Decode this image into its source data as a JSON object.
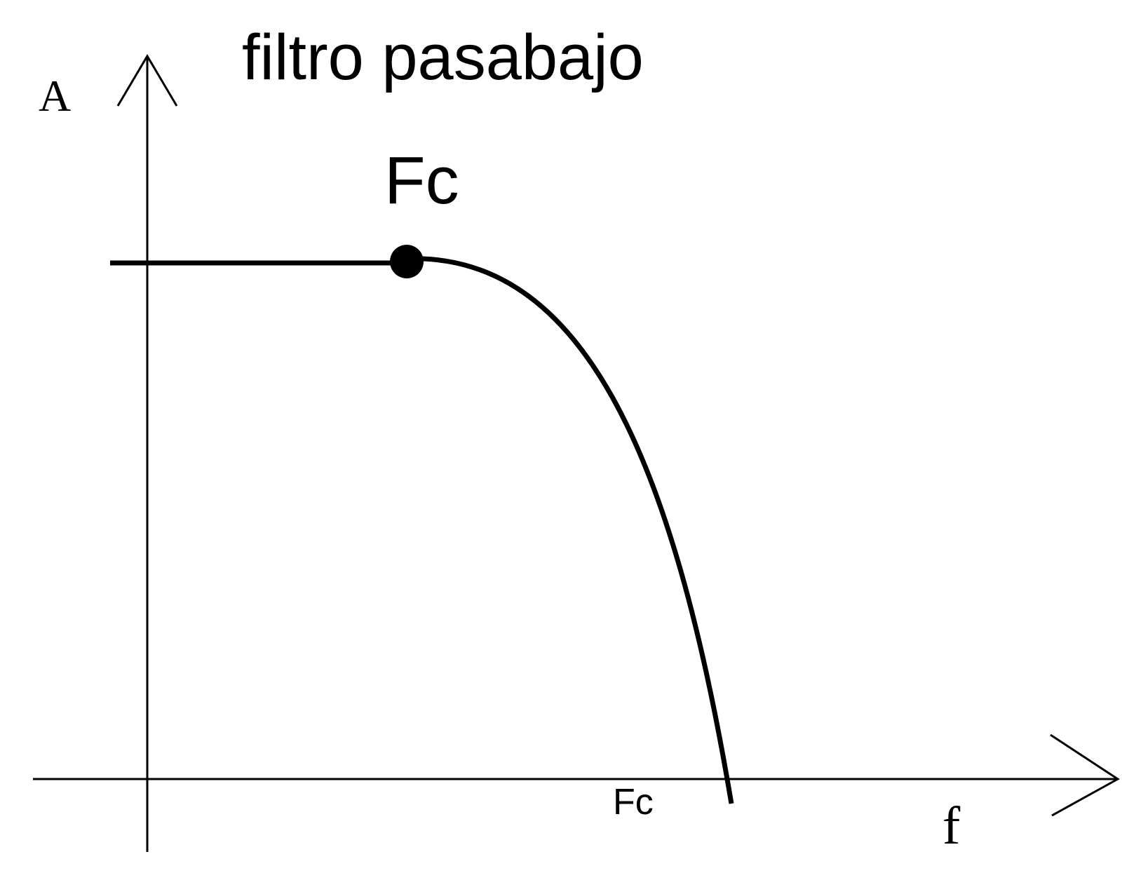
{
  "title": "filtro pasabajo",
  "axes": {
    "y_label": "A",
    "x_label": "f"
  },
  "cutoff_point_label": "Fc",
  "cutoff_axis_label": "Fc",
  "colors": {
    "ink": "#000000",
    "background": "#ffffff"
  }
}
